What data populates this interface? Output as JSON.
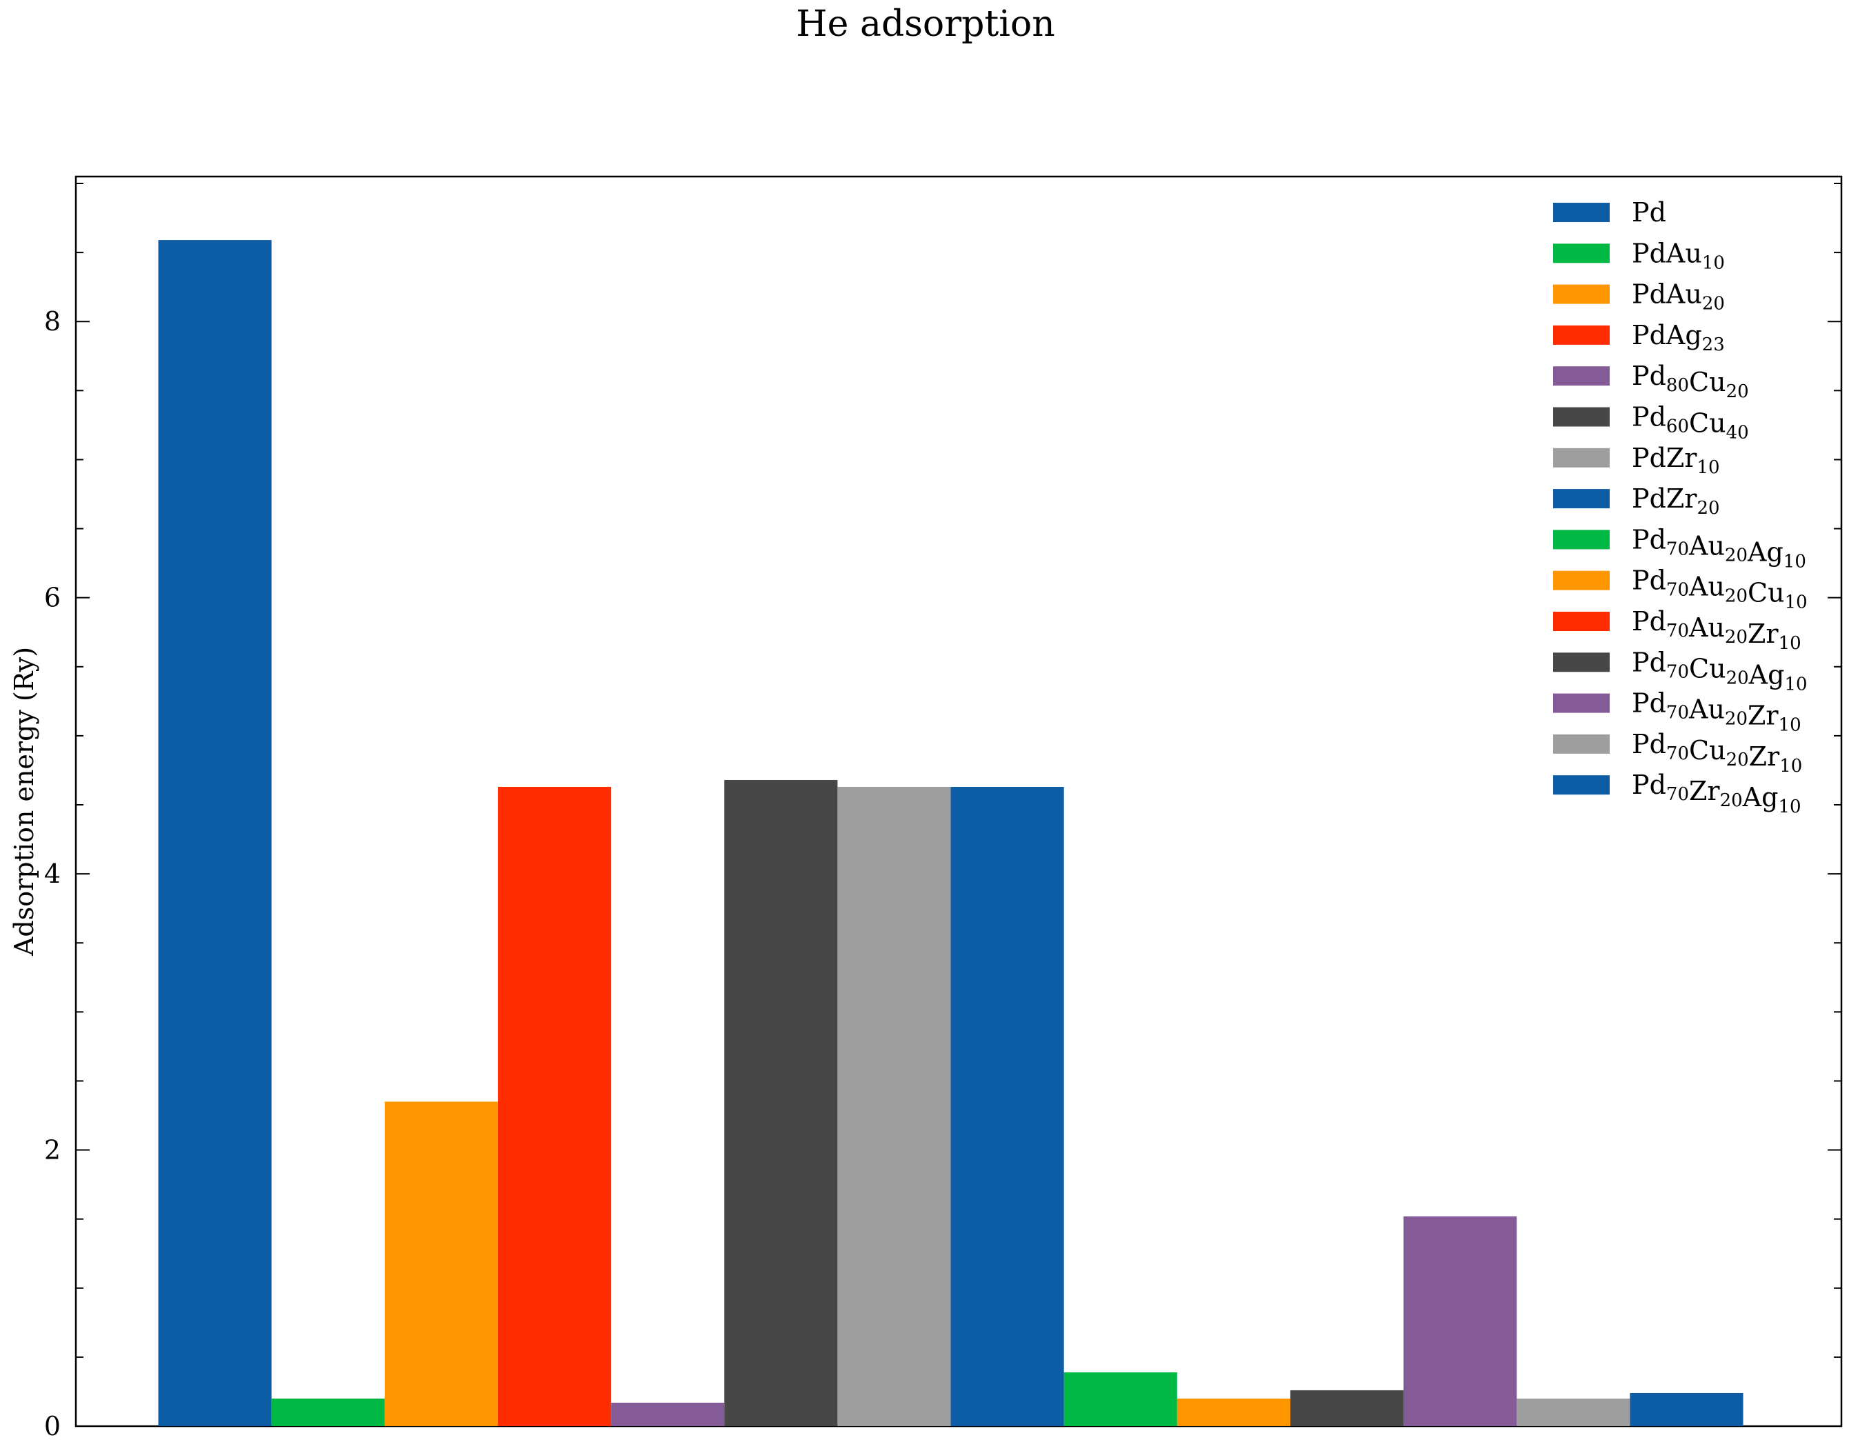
{
  "chart_data": {
    "type": "bar",
    "title": "He adsorption",
    "xlabel": "",
    "ylabel": "Adsorption energy (Ry)",
    "ylim": [
      0,
      9.05
    ],
    "yticks": [
      0,
      2,
      4,
      6,
      8
    ],
    "grid": false,
    "legend_position": "top-right",
    "series": [
      {
        "name": "Pd",
        "sub": [
          [
            "Pd",
            ""
          ]
        ],
        "value": 8.59,
        "color": "#0c5da5"
      },
      {
        "name": "PdAu10",
        "sub": [
          [
            "PdAu",
            "10"
          ]
        ],
        "value": 0.2,
        "color": "#00b945"
      },
      {
        "name": "PdAu20",
        "sub": [
          [
            "PdAu",
            "20"
          ]
        ],
        "value": 2.35,
        "color": "#ff9500"
      },
      {
        "name": "PdAg23",
        "sub": [
          [
            "PdAg",
            "23"
          ]
        ],
        "value": 4.63,
        "color": "#ff2c00"
      },
      {
        "name": "Pd80Cu20",
        "sub": [
          [
            "Pd",
            "80"
          ],
          [
            "Cu",
            "20"
          ]
        ],
        "value": 0.17,
        "color": "#845b97"
      },
      {
        "name": "Pd60Cu40",
        "sub": [
          [
            "Pd",
            "60"
          ],
          [
            "Cu",
            "40"
          ]
        ],
        "value": 4.68,
        "color": "#474747"
      },
      {
        "name": "PdZr10",
        "sub": [
          [
            "PdZr",
            "10"
          ]
        ],
        "value": 4.63,
        "color": "#9e9e9e"
      },
      {
        "name": "PdZr20",
        "sub": [
          [
            "PdZr",
            "20"
          ]
        ],
        "value": 4.63,
        "color": "#0c5da5"
      },
      {
        "name": "Pd70Au20Ag10",
        "sub": [
          [
            "Pd",
            "70"
          ],
          [
            "Au",
            "20"
          ],
          [
            "Ag",
            "10"
          ]
        ],
        "value": 0.39,
        "color": "#00b945"
      },
      {
        "name": "Pd70Au20Cu10",
        "sub": [
          [
            "Pd",
            "70"
          ],
          [
            "Au",
            "20"
          ],
          [
            "Cu",
            "10"
          ]
        ],
        "value": 0.2,
        "color": "#ff9500"
      },
      {
        "name": "Pd70Au20Zr10",
        "sub": [
          [
            "Pd",
            "70"
          ],
          [
            "Au",
            "20"
          ],
          [
            "Zr",
            "10"
          ]
        ],
        "value": 0.0,
        "color": "#ff2c00"
      },
      {
        "name": "Pd70Cu20Ag10",
        "sub": [
          [
            "Pd",
            "70"
          ],
          [
            "Cu",
            "20"
          ],
          [
            "Ag",
            "10"
          ]
        ],
        "value": 0.26,
        "color": "#474747"
      },
      {
        "name": "Pd70Au20Zr10",
        "sub": [
          [
            "Pd",
            "70"
          ],
          [
            "Au",
            "20"
          ],
          [
            "Zr",
            "10"
          ]
        ],
        "value": 1.52,
        "color": "#845b97"
      },
      {
        "name": "Pd70Cu20Zr10",
        "sub": [
          [
            "Pd",
            "70"
          ],
          [
            "Cu",
            "20"
          ],
          [
            "Zr",
            "10"
          ]
        ],
        "value": 0.2,
        "color": "#9e9e9e"
      },
      {
        "name": "Pd70Zr20Ag10",
        "sub": [
          [
            "Pd",
            "70"
          ],
          [
            "Zr",
            "20"
          ],
          [
            "Ag",
            "10"
          ]
        ],
        "value": 0.24,
        "color": "#0c5da5"
      }
    ],
    "bar_series": [
      0,
      1,
      2,
      3,
      4,
      5,
      6,
      7,
      8,
      9,
      11,
      12,
      13,
      14
    ]
  }
}
